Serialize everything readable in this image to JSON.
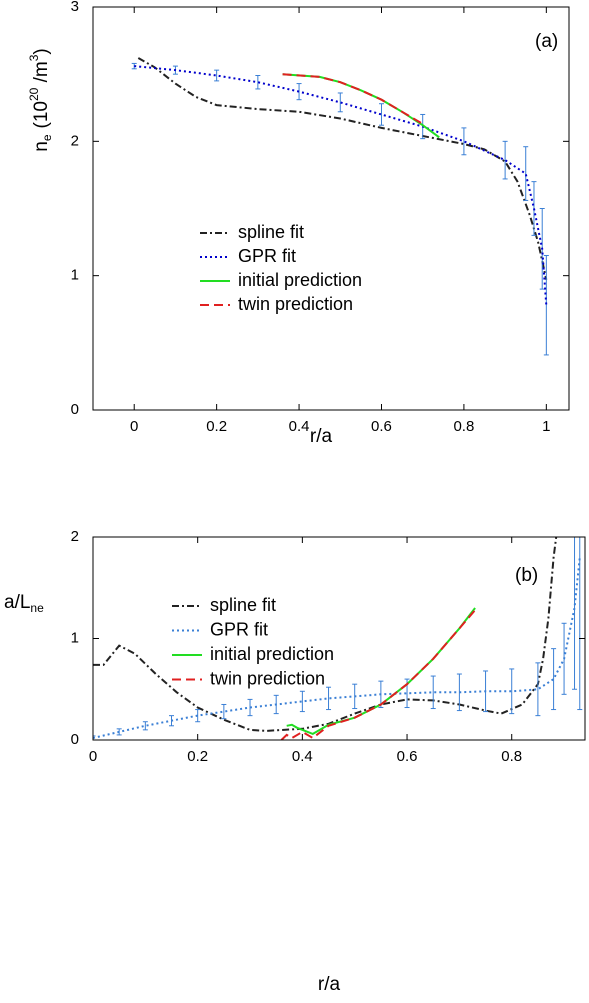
{
  "chart_data": [
    {
      "type": "line",
      "xlabel": "r/a",
      "ylabel": [
        "n",
        "e",
        "(10",
        "20",
        " /m",
        "3",
        ")"
      ],
      "annotation": "(a)",
      "xlim": [
        -0.1,
        1.055
      ],
      "xticks": [
        0,
        0.2,
        0.4,
        0.6,
        0.8,
        1
      ],
      "ylim": [
        0,
        3
      ],
      "yticks": [
        0,
        1,
        2,
        3
      ],
      "series": [
        {
          "name": "spline fit",
          "color": "#222222",
          "dash": "dashdot",
          "x": [
            0.01,
            0.05,
            0.1,
            0.15,
            0.2,
            0.3,
            0.4,
            0.5,
            0.6,
            0.7,
            0.8,
            0.85,
            0.9,
            0.93,
            0.96,
            0.98,
            1.0
          ],
          "values": [
            2.62,
            2.55,
            2.43,
            2.33,
            2.27,
            2.24,
            2.22,
            2.17,
            2.1,
            2.04,
            1.98,
            1.94,
            1.85,
            1.7,
            1.45,
            1.25,
            0.97
          ]
        },
        {
          "name": "GPR fit",
          "color": "#0000cc",
          "dash": "dotted",
          "error_color": "#3a7fd5",
          "x": [
            0,
            0.1,
            0.2,
            0.3,
            0.4,
            0.5,
            0.6,
            0.7,
            0.8,
            0.9,
            0.95,
            0.97,
            0.99,
            1.0
          ],
          "values": [
            2.56,
            2.53,
            2.49,
            2.44,
            2.37,
            2.29,
            2.2,
            2.11,
            2.0,
            1.86,
            1.76,
            1.5,
            1.2,
            0.78
          ],
          "errors": [
            0.02,
            0.03,
            0.04,
            0.05,
            0.06,
            0.07,
            0.08,
            0.09,
            0.1,
            0.14,
            0.2,
            0.2,
            0.3,
            0.37
          ]
        },
        {
          "name": "initial prediction",
          "color": "#22dd22",
          "dash": "solid",
          "x": [
            0.36,
            0.45,
            0.5,
            0.55,
            0.6,
            0.65,
            0.7,
            0.74
          ],
          "values": [
            2.5,
            2.48,
            2.44,
            2.38,
            2.31,
            2.22,
            2.12,
            2.03
          ]
        },
        {
          "name": "twin prediction",
          "color": "#e02020",
          "dash": "dashed",
          "x": [
            0.36,
            0.45,
            0.5,
            0.55,
            0.6,
            0.65,
            0.7
          ],
          "values": [
            2.5,
            2.48,
            2.44,
            2.38,
            2.31,
            2.22,
            2.13
          ]
        }
      ]
    },
    {
      "type": "line",
      "xlabel": "r/a",
      "ylabel": [
        "a/L",
        "ne"
      ],
      "annotation": "(b)",
      "xlim": [
        0,
        0.94
      ],
      "xticks": [
        0,
        0.2,
        0.4,
        0.6,
        0.8
      ],
      "ylim": [
        0,
        2
      ],
      "yticks": [
        0,
        1,
        2
      ],
      "series": [
        {
          "name": "spline fit",
          "color": "#222222",
          "dash": "dashdot",
          "x": [
            0,
            0.02,
            0.05,
            0.08,
            0.12,
            0.16,
            0.2,
            0.25,
            0.3,
            0.33,
            0.4,
            0.45,
            0.5,
            0.55,
            0.6,
            0.65,
            0.7,
            0.75,
            0.78,
            0.82,
            0.85,
            0.86,
            0.87,
            0.88,
            0.885
          ],
          "values": [
            0.74,
            0.74,
            0.93,
            0.85,
            0.65,
            0.47,
            0.32,
            0.2,
            0.1,
            0.09,
            0.11,
            0.16,
            0.26,
            0.35,
            0.4,
            0.39,
            0.35,
            0.29,
            0.26,
            0.35,
            0.55,
            0.8,
            1.2,
            1.8,
            2.0
          ]
        },
        {
          "name": "GPR fit",
          "color": "#3a7fd5",
          "dash": "dotted",
          "error_color": "#3a7fd5",
          "x": [
            0,
            0.05,
            0.1,
            0.15,
            0.2,
            0.25,
            0.3,
            0.35,
            0.4,
            0.45,
            0.5,
            0.55,
            0.6,
            0.65,
            0.7,
            0.75,
            0.8,
            0.85,
            0.88,
            0.9,
            0.92,
            0.93
          ],
          "values": [
            0.02,
            0.08,
            0.14,
            0.19,
            0.24,
            0.28,
            0.32,
            0.35,
            0.38,
            0.41,
            0.43,
            0.45,
            0.46,
            0.47,
            0.47,
            0.48,
            0.48,
            0.5,
            0.6,
            0.8,
            1.3,
            1.8
          ],
          "errors": [
            0.02,
            0.03,
            0.04,
            0.05,
            0.06,
            0.07,
            0.08,
            0.09,
            0.1,
            0.11,
            0.12,
            0.13,
            0.14,
            0.16,
            0.18,
            0.2,
            0.22,
            0.26,
            0.3,
            0.35,
            0.8,
            1.5
          ]
        },
        {
          "name": "initial prediction",
          "color": "#22dd22",
          "dash": "solid",
          "x": [
            0.37,
            0.38,
            0.39,
            0.42,
            0.45,
            0.5,
            0.55,
            0.6,
            0.65,
            0.7,
            0.73
          ],
          "values": [
            0.14,
            0.15,
            0.12,
            0.06,
            0.15,
            0.22,
            0.35,
            0.55,
            0.8,
            1.1,
            1.3
          ]
        },
        {
          "name": "twin prediction",
          "color": "#e02020",
          "dash": "dashed",
          "x": [
            0.36,
            0.37,
            0.38,
            0.4,
            0.42,
            0.45,
            0.5,
            0.55,
            0.6,
            0.65,
            0.7,
            0.73
          ],
          "values": [
            0.0,
            0.05,
            0.02,
            0.08,
            0.02,
            0.14,
            0.22,
            0.35,
            0.55,
            0.8,
            1.1,
            1.28
          ]
        }
      ]
    }
  ]
}
